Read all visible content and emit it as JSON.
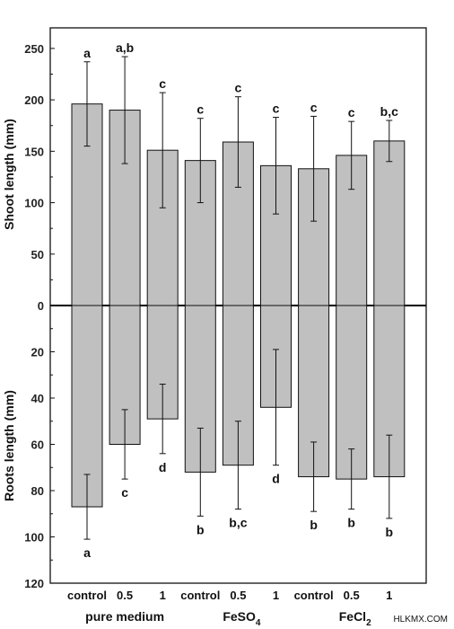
{
  "chart_data": {
    "type": "bar",
    "categories": [
      "control",
      "0.5",
      "1",
      "control",
      "0.5",
      "1",
      "control",
      "0.5",
      "1"
    ],
    "groups": [
      {
        "label": "pure medium",
        "label_sub": "",
        "start": 0,
        "end": 2
      },
      {
        "label": "FeSO",
        "label_sub": "4",
        "start": 3,
        "end": 5
      },
      {
        "label": "FeCl",
        "label_sub": "2",
        "start": 6,
        "end": 8
      }
    ],
    "shoot": {
      "ylabel": "Shoot length (mm)",
      "ylim": [
        0,
        270
      ],
      "ticks": [
        "0",
        "50",
        "100",
        "150",
        "200",
        "250"
      ],
      "tick_values": [
        0,
        50,
        100,
        150,
        200,
        250
      ],
      "values": [
        196,
        190,
        151,
        141,
        159,
        136,
        133,
        146,
        160
      ],
      "errors": [
        41,
        52,
        56,
        41,
        44,
        47,
        51,
        33,
        20
      ],
      "labels": [
        "a",
        "a,b",
        "c",
        "c",
        "c",
        "c",
        "c",
        "c",
        "b,c"
      ]
    },
    "roots": {
      "ylabel": "Roots length (mm)",
      "ylim": [
        0,
        120
      ],
      "ticks": [
        "20",
        "40",
        "60",
        "80",
        "100",
        "120"
      ],
      "tick_values": [
        20,
        40,
        60,
        80,
        100,
        120
      ],
      "values": [
        87,
        60,
        49,
        72,
        69,
        44,
        74,
        75,
        74
      ],
      "errors": [
        14,
        15,
        15,
        19,
        19,
        25,
        15,
        13,
        18
      ],
      "labels": [
        "a",
        "c",
        "d",
        "b",
        "b,c",
        "d",
        "b",
        "b",
        "b"
      ]
    },
    "zero_label": "0",
    "bar_color": "#c0c0c0",
    "grid": false
  },
  "watermark": "HLKMX.COM"
}
